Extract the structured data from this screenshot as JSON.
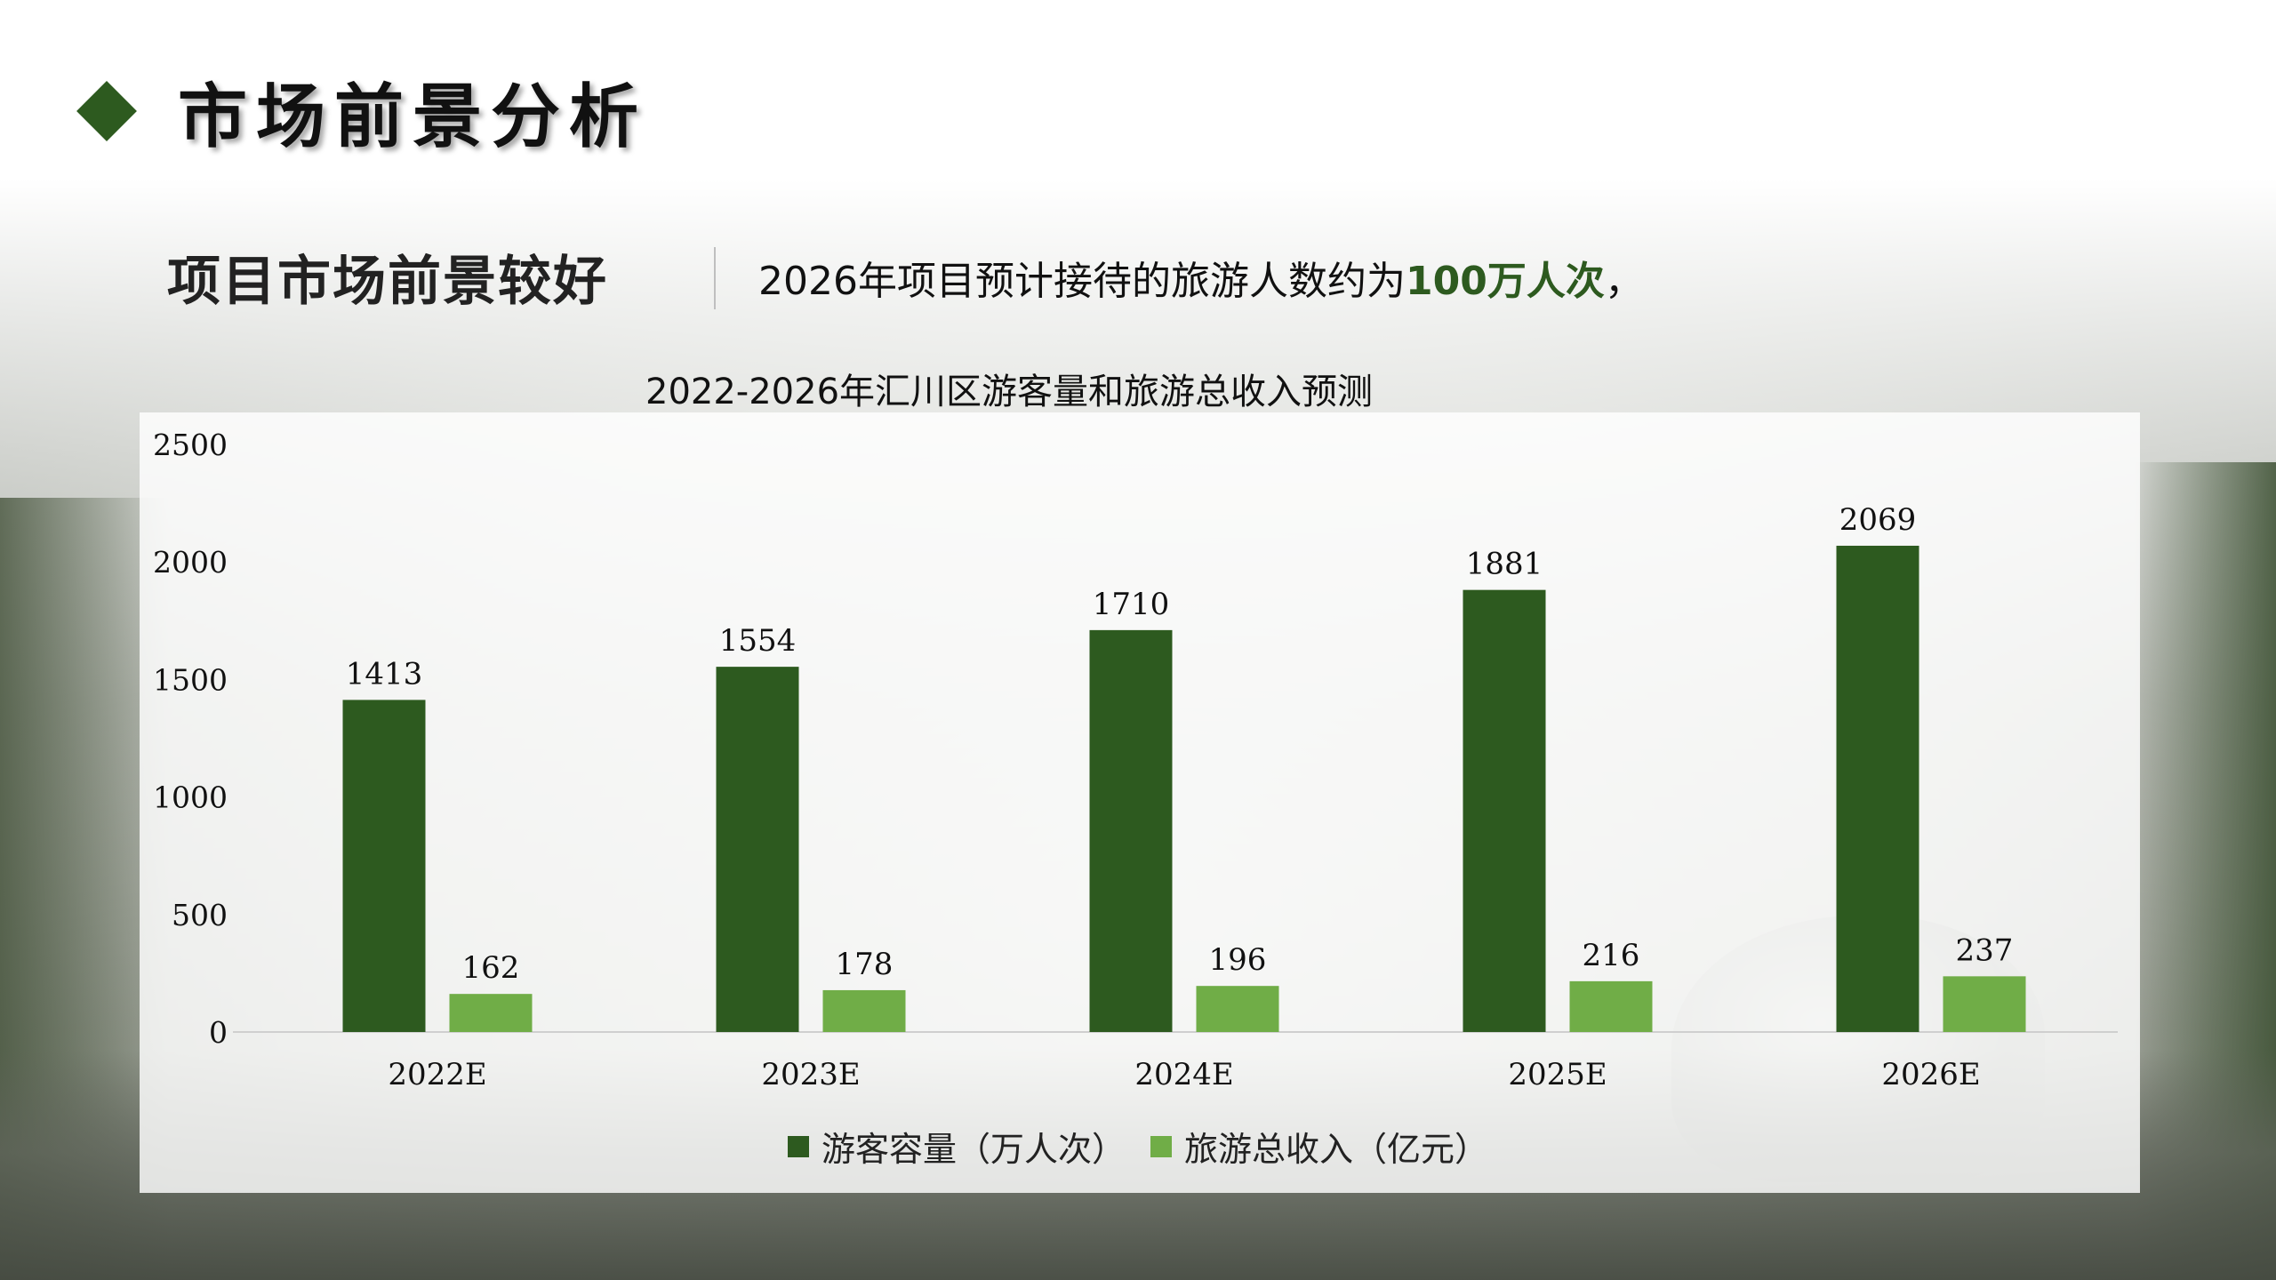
{
  "header": {
    "title": "市场前景分析"
  },
  "summary": {
    "subtitle": "项目市场前景较好",
    "desc_prefix": "2026年项目预计接待的旅游人数约为",
    "desc_highlight": "100万人次",
    "desc_suffix": "，"
  },
  "colors": {
    "accent": "#2d5a1f",
    "series1": "#2d5a1f",
    "series2": "#70ad47"
  },
  "chart_data": {
    "type": "bar",
    "title": "2022-2026年汇川区游客量和旅游总收入预测",
    "categories": [
      "2022E",
      "2023E",
      "2024E",
      "2025E",
      "2026E"
    ],
    "series": [
      {
        "name": "游客容量（万人次）",
        "values": [
          1413,
          1554,
          1710,
          1881,
          2069
        ]
      },
      {
        "name": "旅游总收入（亿元）",
        "values": [
          162,
          178,
          196,
          216,
          237
        ]
      }
    ],
    "ylim": [
      0,
      2500
    ],
    "yticks": [
      0,
      500,
      1000,
      1500,
      2000,
      2500
    ],
    "grid": false,
    "legend": "bottom-center"
  }
}
